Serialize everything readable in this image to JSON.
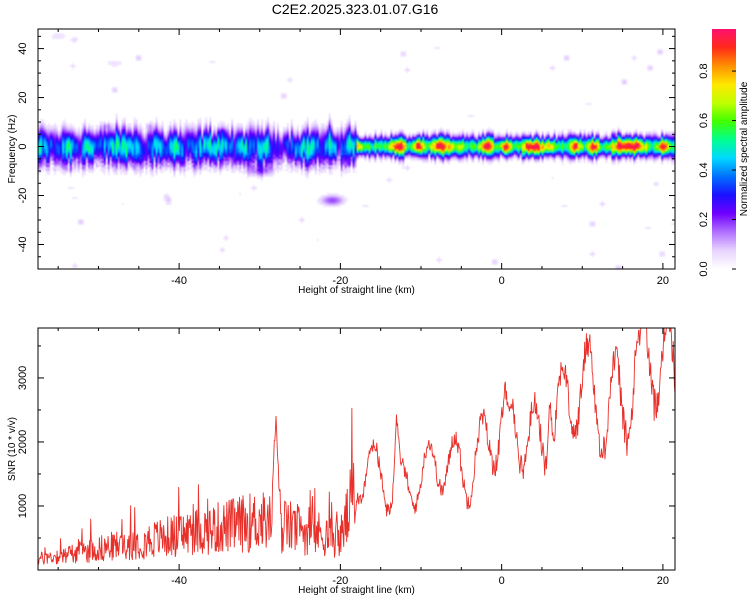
{
  "title": "C2E2.2025.323.01.07.G16",
  "chart_data": [
    {
      "type": "heatmap",
      "name": "spectrogram",
      "xlabel": "Height of straight line (km)",
      "ylabel": "Frequency (Hz)",
      "xlim": [
        -57.5,
        21.5
      ],
      "ylim": [
        -50,
        48
      ],
      "xticks": [
        -40,
        -20,
        0,
        20
      ],
      "yticks": [
        -40,
        -20,
        0,
        20,
        40
      ],
      "colorbar": {
        "label": "Normalized spectral amplitude",
        "range": [
          0,
          0.97
        ],
        "ticks": [
          0.0,
          0.2,
          0.4,
          0.6,
          0.8
        ],
        "tick_labels": [
          "0.0",
          "0.2",
          "0.4",
          "0.6",
          "0.8"
        ],
        "colors": [
          "#ffffff",
          "#e8d4ff",
          "#b070ff",
          "#7000ff",
          "#1a10ff",
          "#0070ff",
          "#00d8ff",
          "#00ff90",
          "#40ff00",
          "#c0ff00",
          "#ffe800",
          "#ff9000",
          "#ff2a1a",
          "#ff1070"
        ]
      },
      "band": {
        "x_start": -57.5,
        "x_end": 21.5,
        "center_freq": 0,
        "half_width_hz": 5
      },
      "artifacts": [
        {
          "x": -21,
          "y": -22,
          "amplitude": 0.18
        },
        {
          "x": -30,
          "y": -10,
          "amplitude": 0.12
        },
        {
          "x": -55,
          "y": 45,
          "amplitude": 0.05
        },
        {
          "x": -48,
          "y": 34,
          "amplitude": 0.05
        }
      ]
    },
    {
      "type": "line",
      "name": "snr",
      "xlabel": "Height of straight line (km)",
      "ylabel": "SNR (10 * v/v)",
      "xlim": [
        -57.5,
        21.5
      ],
      "ylim": [
        0,
        3780
      ],
      "xticks": [
        -40,
        -20,
        0,
        20
      ],
      "yticks": [
        1000,
        2000,
        3000
      ],
      "color": "#e8302a",
      "envelope": [
        {
          "x": -57.5,
          "y": 150
        },
        {
          "x": -50,
          "y": 300
        },
        {
          "x": -40,
          "y": 500
        },
        {
          "x": -30,
          "y": 700
        },
        {
          "x": -20,
          "y": 450
        },
        {
          "x": -17,
          "y": 1500
        },
        {
          "x": -10,
          "y": 1350
        },
        {
          "x": -5,
          "y": 1750
        },
        {
          "x": 0,
          "y": 2100
        },
        {
          "x": 5,
          "y": 2250
        },
        {
          "x": 10,
          "y": 2600
        },
        {
          "x": 15,
          "y": 2900
        },
        {
          "x": 18,
          "y": 3100
        },
        {
          "x": 21.5,
          "y": 3150
        }
      ],
      "peaks": [
        {
          "x": -28,
          "y": 2450
        },
        {
          "x": -16,
          "y": 2050
        },
        {
          "x": -13,
          "y": 2500
        },
        {
          "x": 1,
          "y": 2550
        },
        {
          "x": 6,
          "y": 2700
        },
        {
          "x": 17,
          "y": 3780
        }
      ]
    }
  ]
}
